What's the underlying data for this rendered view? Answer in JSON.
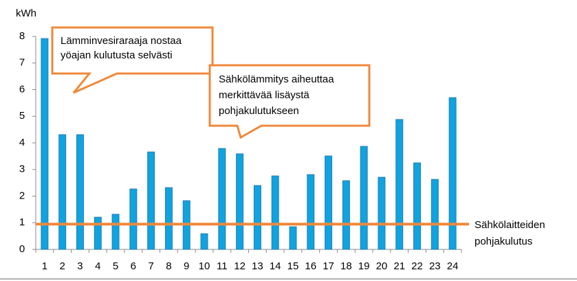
{
  "chart_data": {
    "type": "bar",
    "y_unit": "kWh",
    "categories": [
      "1",
      "2",
      "3",
      "4",
      "5",
      "6",
      "7",
      "8",
      "9",
      "10",
      "11",
      "12",
      "13",
      "14",
      "15",
      "16",
      "17",
      "18",
      "19",
      "20",
      "21",
      "22",
      "23",
      "24"
    ],
    "values": [
      7.92,
      4.31,
      4.31,
      1.21,
      1.32,
      2.27,
      3.66,
      2.32,
      1.83,
      0.59,
      3.79,
      3.59,
      2.4,
      2.76,
      0.85,
      2.81,
      3.51,
      2.58,
      3.87,
      2.71,
      4.88,
      3.25,
      2.63,
      5.7
    ],
    "color": "#0fa3e0",
    "ylim": [
      0,
      8
    ],
    "yticks": [
      0,
      1,
      2,
      3,
      4,
      5,
      6,
      7,
      8
    ],
    "grid": false,
    "reference_line": {
      "value": 0.95,
      "color": "#f0883a",
      "label_lines": [
        "Sähkölaitteiden",
        "pohjakulutus"
      ]
    },
    "annotations": [
      {
        "lines": [
          "Lämminvesiraraaja nostaa",
          "yöajan kulutusta selvästi"
        ]
      },
      {
        "lines": [
          "Sähkölämmitys aiheuttaa",
          "merkittävää lisäystä",
          "pohjakulutukseen"
        ]
      }
    ]
  }
}
